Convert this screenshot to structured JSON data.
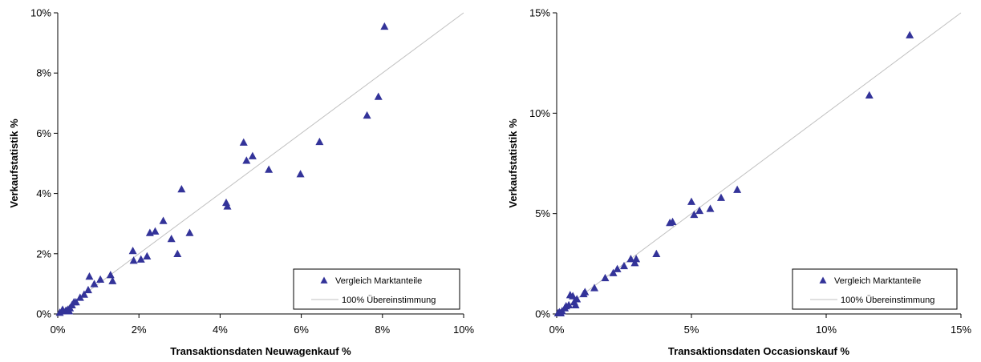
{
  "chart_data": [
    {
      "type": "scatter",
      "xlabel": "Transaktionsdaten Neuwagenkauf %",
      "ylabel": "Verkaufstatistik %",
      "xlim": [
        0,
        10
      ],
      "ylim": [
        0,
        10
      ],
      "xticks": [
        0,
        2,
        4,
        6,
        8,
        10
      ],
      "yticks": [
        0,
        2,
        4,
        6,
        8,
        10
      ],
      "xtick_labels": [
        "0%",
        "2%",
        "4%",
        "6%",
        "8%",
        "10%"
      ],
      "ytick_labels": [
        "0%",
        "2%",
        "4%",
        "6%",
        "8%",
        "10%"
      ],
      "grid": false,
      "legend_position": "bottom-right",
      "series": [
        {
          "name": "Vergleich Marktanteile",
          "marker": "triangle",
          "color": "#333399",
          "points": [
            [
              0.05,
              0.05
            ],
            [
              0.1,
              0.1
            ],
            [
              0.12,
              0.15
            ],
            [
              0.2,
              0.12
            ],
            [
              0.25,
              0.15
            ],
            [
              0.3,
              0.2
            ],
            [
              0.28,
              0.1
            ],
            [
              0.35,
              0.3
            ],
            [
              0.4,
              0.4
            ],
            [
              0.45,
              0.4
            ],
            [
              0.55,
              0.55
            ],
            [
              0.65,
              0.65
            ],
            [
              0.75,
              0.8
            ],
            [
              0.78,
              1.25
            ],
            [
              0.9,
              1.0
            ],
            [
              1.05,
              1.15
            ],
            [
              1.3,
              1.3
            ],
            [
              1.35,
              1.1
            ],
            [
              1.85,
              2.1
            ],
            [
              1.87,
              1.78
            ],
            [
              2.05,
              1.82
            ],
            [
              2.2,
              1.92
            ],
            [
              2.27,
              2.7
            ],
            [
              2.4,
              2.75
            ],
            [
              2.6,
              3.1
            ],
            [
              2.8,
              2.5
            ],
            [
              2.95,
              2.0
            ],
            [
              3.05,
              4.15
            ],
            [
              3.25,
              2.7
            ],
            [
              4.15,
              3.7
            ],
            [
              4.18,
              3.58
            ],
            [
              4.58,
              5.7
            ],
            [
              4.65,
              5.1
            ],
            [
              4.8,
              5.25
            ],
            [
              5.2,
              4.8
            ],
            [
              5.98,
              4.65
            ],
            [
              6.45,
              5.72
            ],
            [
              7.62,
              6.6
            ],
            [
              7.9,
              7.22
            ],
            [
              8.05,
              9.55
            ]
          ]
        },
        {
          "name": "100% Übereinstimmung",
          "line": [
            [
              0,
              0
            ],
            [
              10,
              10
            ]
          ],
          "color": "#c0c0c0"
        }
      ]
    },
    {
      "type": "scatter",
      "xlabel": "Transaktionsdaten Occasionskauf %",
      "ylabel": "Verkaufstatistik %",
      "xlim": [
        0,
        15
      ],
      "ylim": [
        0,
        15
      ],
      "xticks": [
        0,
        5,
        10,
        15
      ],
      "yticks": [
        0,
        5,
        10,
        15
      ],
      "xtick_labels": [
        "0%",
        "5%",
        "10%",
        "15%"
      ],
      "ytick_labels": [
        "0%",
        "5%",
        "10%",
        "15%"
      ],
      "grid": false,
      "legend_position": "bottom-right",
      "series": [
        {
          "name": "Vergleich Marktanteile",
          "marker": "triangle",
          "color": "#333399",
          "points": [
            [
              0.05,
              0.05
            ],
            [
              0.1,
              0.1
            ],
            [
              0.15,
              0.05
            ],
            [
              0.2,
              0.15
            ],
            [
              0.3,
              0.3
            ],
            [
              0.35,
              0.4
            ],
            [
              0.45,
              0.45
            ],
            [
              0.5,
              0.95
            ],
            [
              0.6,
              0.9
            ],
            [
              0.65,
              0.6
            ],
            [
              0.7,
              0.45
            ],
            [
              0.75,
              0.75
            ],
            [
              1.0,
              1.0
            ],
            [
              1.05,
              1.1
            ],
            [
              1.4,
              1.3
            ],
            [
              1.8,
              1.8
            ],
            [
              2.1,
              2.05
            ],
            [
              2.25,
              2.25
            ],
            [
              2.5,
              2.4
            ],
            [
              2.75,
              2.75
            ],
            [
              2.9,
              2.55
            ],
            [
              2.95,
              2.75
            ],
            [
              3.7,
              3.0
            ],
            [
              4.2,
              4.55
            ],
            [
              4.3,
              4.6
            ],
            [
              5.0,
              5.6
            ],
            [
              5.1,
              4.95
            ],
            [
              5.3,
              5.15
            ],
            [
              5.7,
              5.25
            ],
            [
              6.1,
              5.8
            ],
            [
              6.7,
              6.2
            ],
            [
              11.6,
              10.9
            ],
            [
              13.1,
              13.9
            ]
          ]
        },
        {
          "name": "100% Übereinstimmung",
          "line": [
            [
              0,
              0
            ],
            [
              15,
              15
            ]
          ],
          "color": "#c0c0c0"
        }
      ]
    }
  ]
}
